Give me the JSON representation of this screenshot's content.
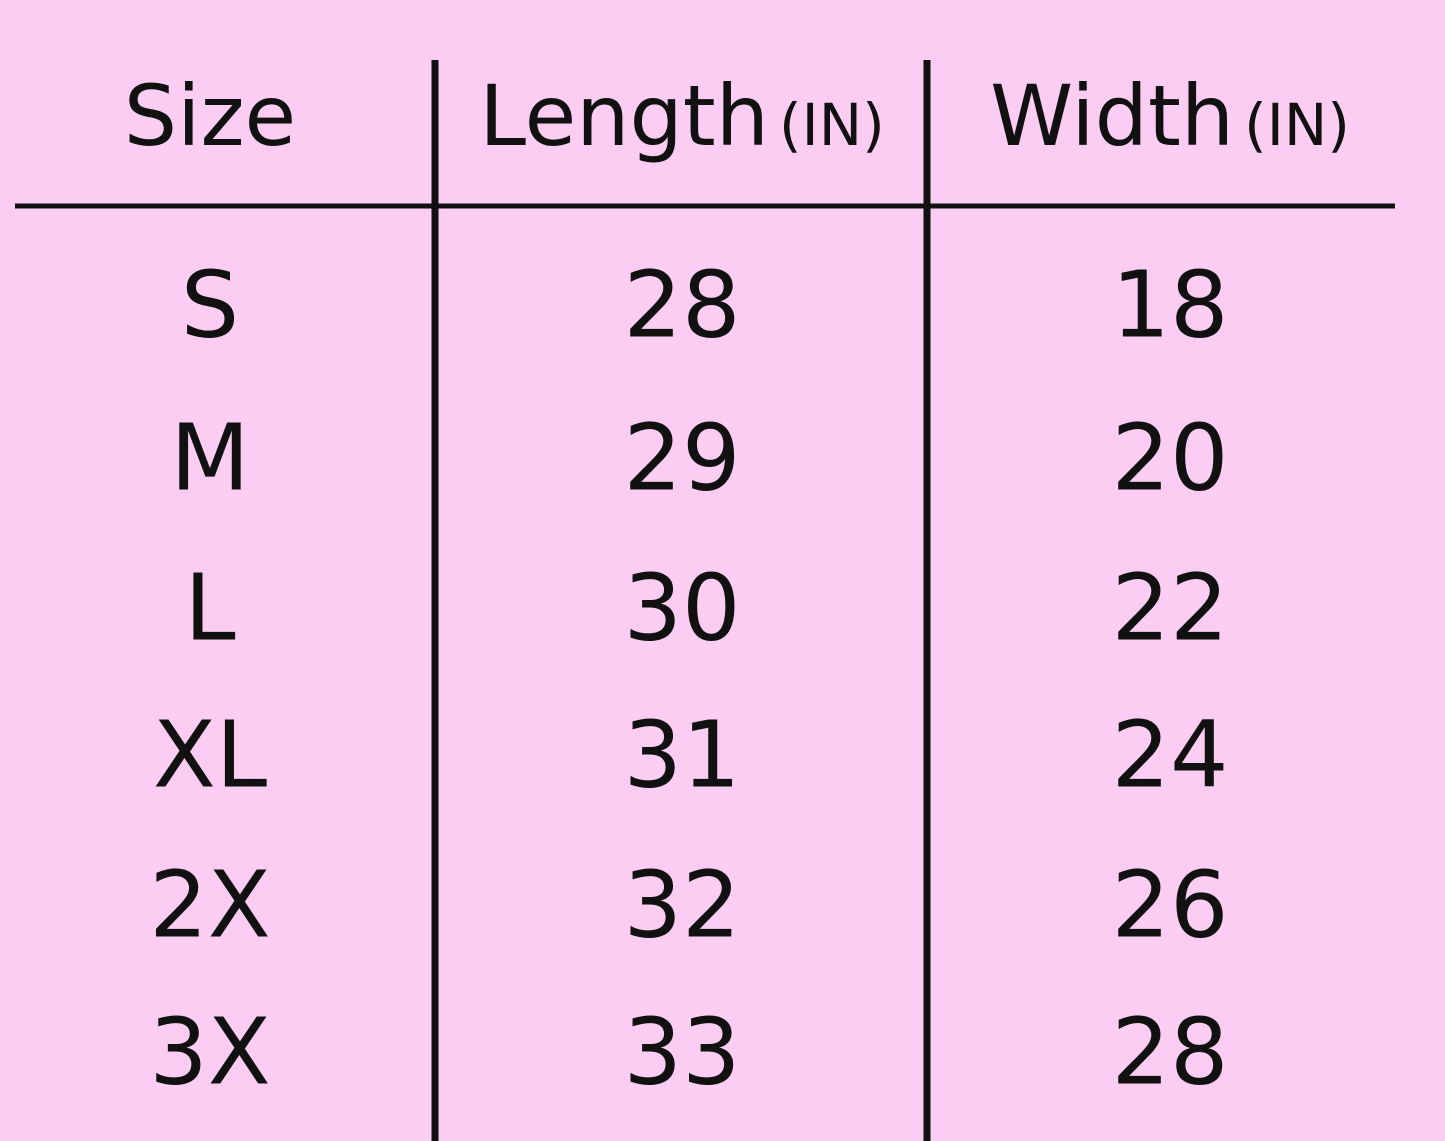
{
  "table": {
    "header": [
      {
        "label": "Size"
      },
      {
        "label": "Length",
        "unit": "(IN)"
      },
      {
        "label": "Width",
        "unit": "(IN)"
      }
    ],
    "rows": [
      [
        "S",
        28,
        18
      ],
      [
        "M",
        29,
        20
      ],
      [
        "L",
        30,
        22
      ],
      [
        "XL",
        31,
        24
      ],
      [
        "2X",
        32,
        26
      ],
      [
        "3X",
        33,
        28
      ]
    ]
  }
}
